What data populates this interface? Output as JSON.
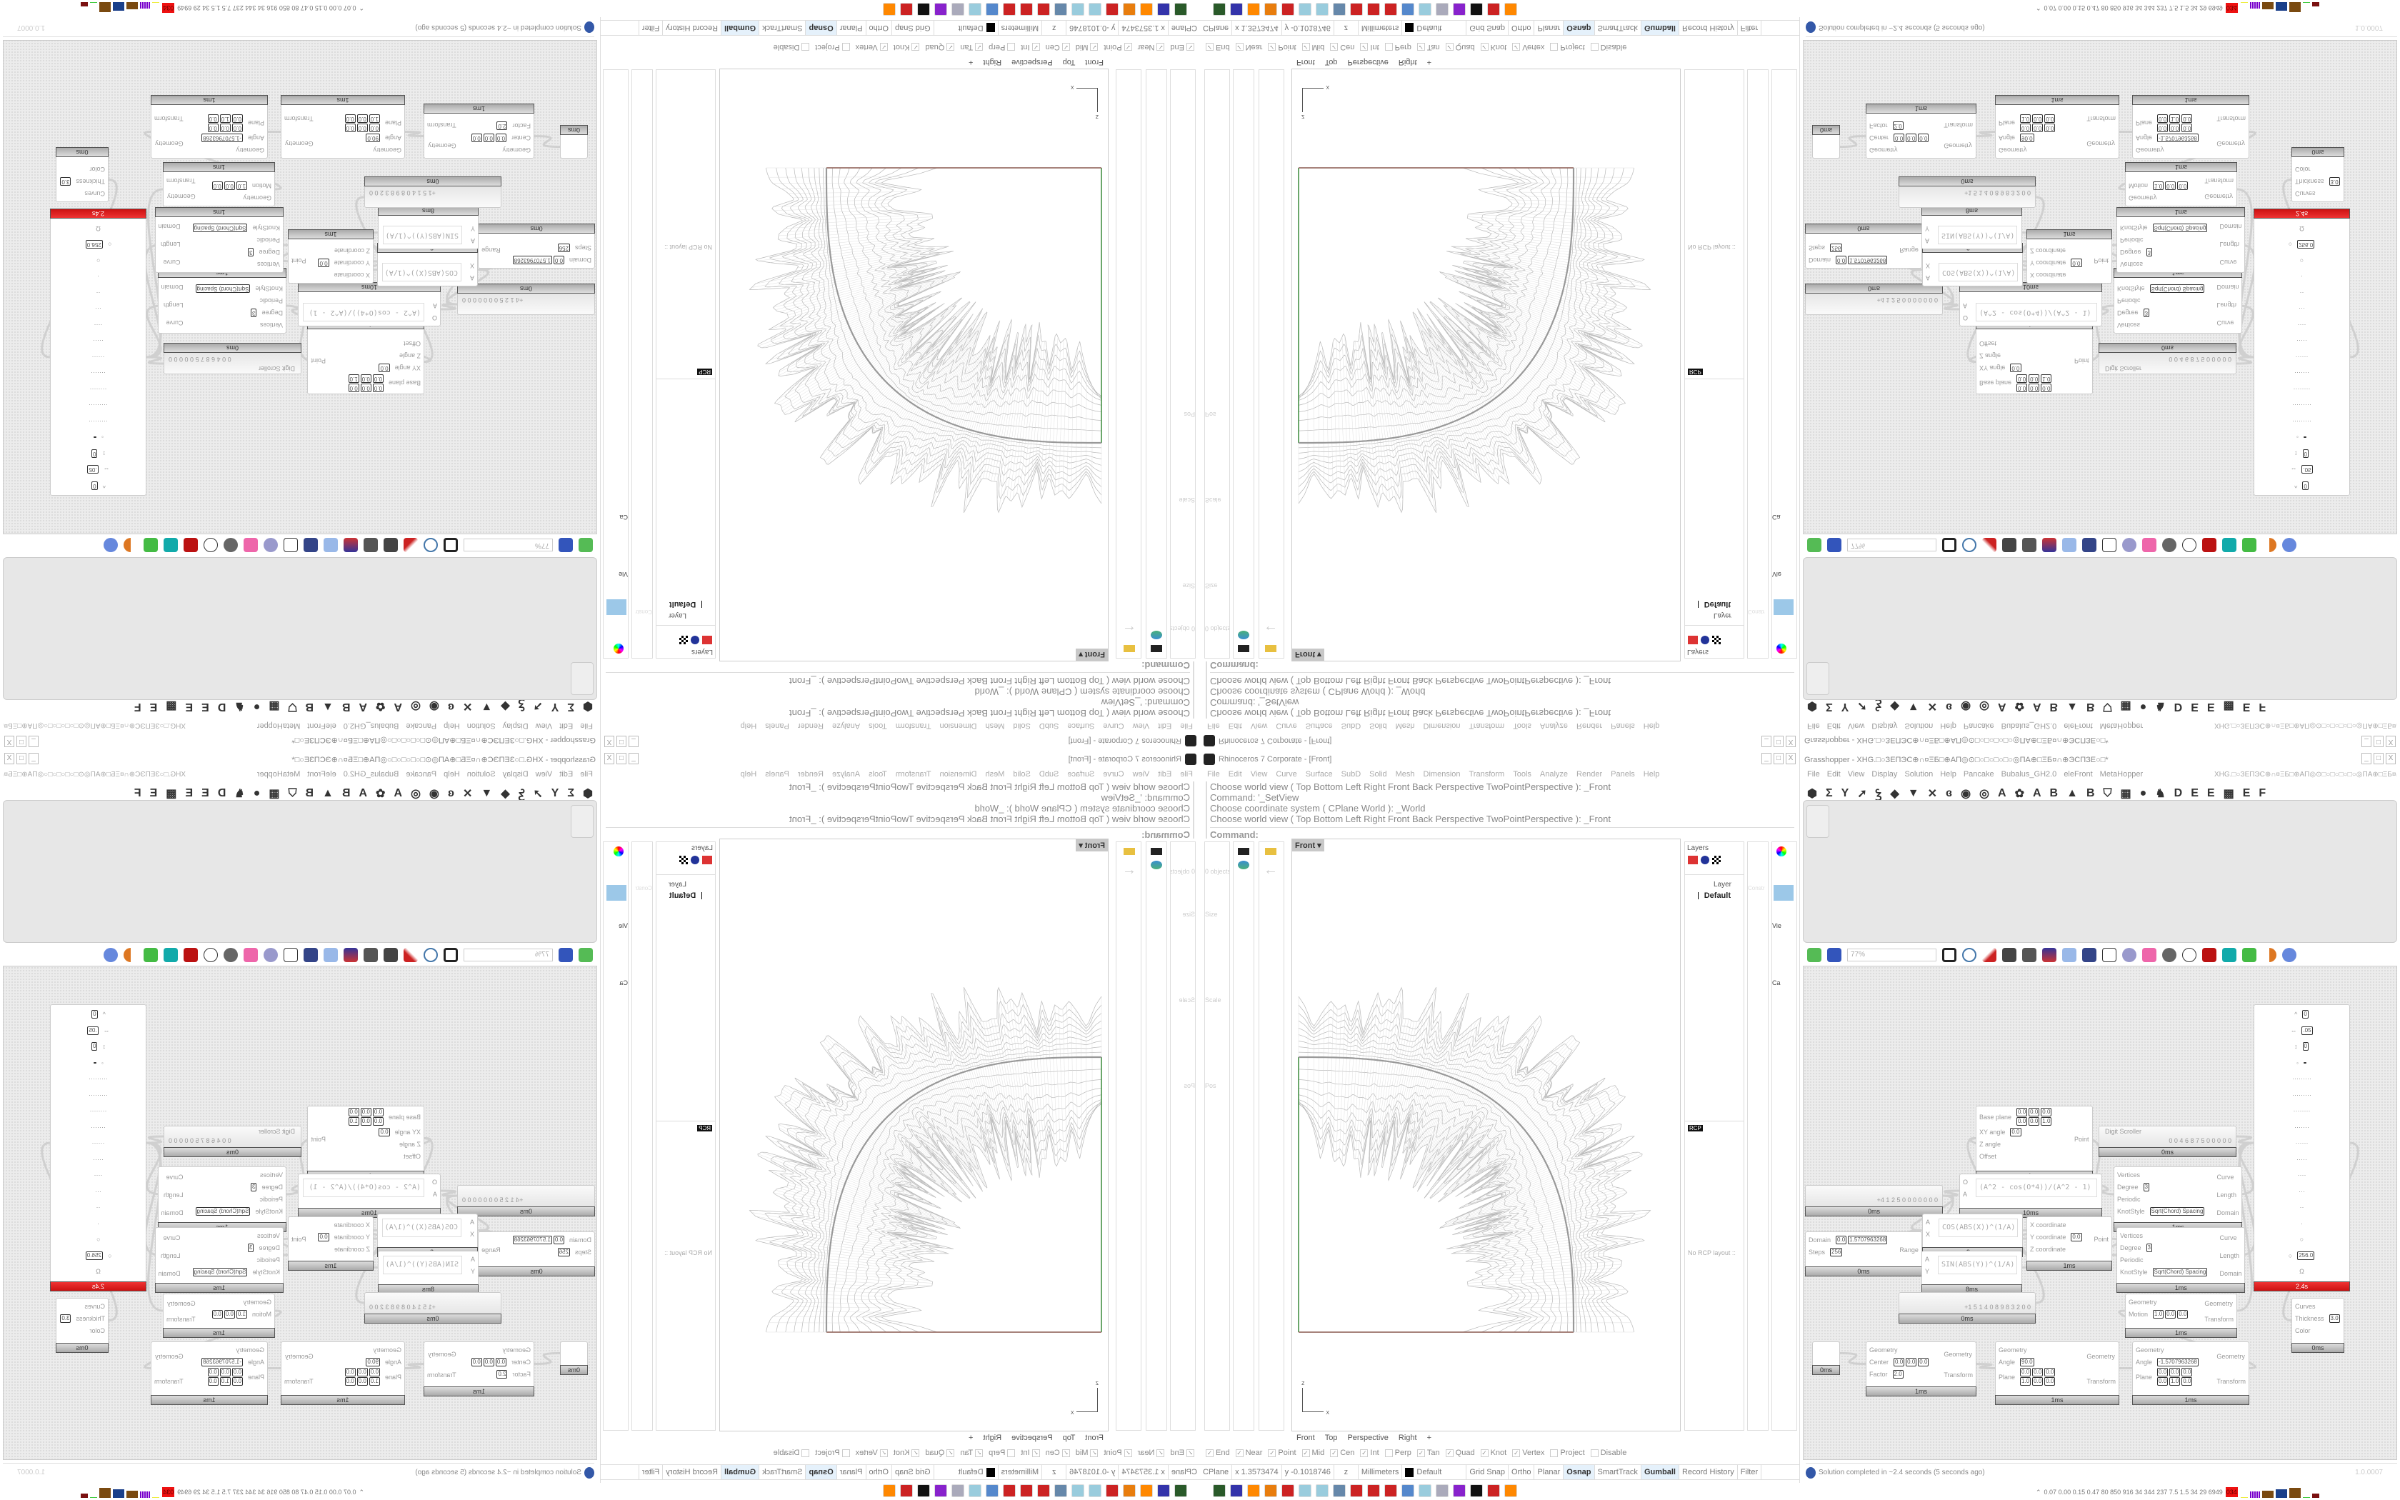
{
  "rhino": {
    "title": "Rhinoceros 7 Corporate - [Front]",
    "menu": [
      "File",
      "Edit",
      "View",
      "Curve",
      "Surface",
      "SubD",
      "Solid",
      "Mesh",
      "Dimension",
      "Transform",
      "Tools",
      "Analyze",
      "Render",
      "Panels",
      "Help"
    ],
    "command_history": [
      "Choose world view ( Top  Bottom  Left  Right  Front  Back  Perspective  TwoPointPerspective ): _Front",
      "Command: '_SetView",
      "Choose coordinate system ( CPlane  World ): _World",
      "Choose world view ( Top  Bottom  Left  Right  Front  Back  Perspective  TwoPointPerspective ): _Front"
    ],
    "command_prompt": "Command:",
    "viewport_label": "Front",
    "viewport_tabs": [
      "Front",
      "Top",
      "Perspective",
      "Right",
      "+"
    ],
    "properties": {
      "objects": "0 objects",
      "sections": [
        "Size",
        "Scale",
        "Pos"
      ],
      "axes": [
        "X:",
        "Y:",
        "Z:"
      ]
    },
    "layers": {
      "title": "Layers",
      "column": "Layer",
      "layer_name": "Default",
      "layer_color": "#000000",
      "rcp_tab": "RCP",
      "rcp_message": "No RCP layout ::"
    },
    "side_truncated": [
      "Constr",
      "Vie",
      "Ca"
    ],
    "osnaps": [
      {
        "label": "End",
        "checked": true
      },
      {
        "label": "Near",
        "checked": true
      },
      {
        "label": "Point",
        "checked": true
      },
      {
        "label": "Mid",
        "checked": true
      },
      {
        "label": "Cen",
        "checked": true
      },
      {
        "label": "Int",
        "checked": true
      },
      {
        "label": "Perp",
        "checked": false
      },
      {
        "label": "Tan",
        "checked": true
      },
      {
        "label": "Quad",
        "checked": true
      },
      {
        "label": "Knot",
        "checked": true
      },
      {
        "label": "Vertex",
        "checked": true
      },
      {
        "label": "Project",
        "checked": false
      },
      {
        "label": "Disable",
        "checked": false
      }
    ],
    "status": {
      "cplane": "CPlane",
      "x": "x 1.3573474",
      "y": "y -0.1018746",
      "z": "z",
      "units": "Millimeters",
      "layer": "Default",
      "toggles": [
        {
          "label": "Grid Snap",
          "active": false
        },
        {
          "label": "Ortho",
          "active": false
        },
        {
          "label": "Planar",
          "active": false
        },
        {
          "label": "Osnap",
          "active": true
        },
        {
          "label": "SmartTrack",
          "active": false
        },
        {
          "label": "Gumball",
          "active": true
        },
        {
          "label": "Record History",
          "active": false
        },
        {
          "label": "Filter",
          "active": false
        }
      ]
    },
    "viewport_colors": {
      "x_axis": "#8a5a50",
      "y_axis": "#3a8a3a",
      "curve": "#999999",
      "fringe": "#b8b8b8"
    }
  },
  "taskbar": {
    "icons": [
      "terminal-icon",
      "floppy-64-icon",
      "firefox-icon",
      "blender-icon",
      "red-app-icon",
      "notepad-icon",
      "notepad-icon",
      "calculator-icon",
      "red-app-icon",
      "red-app-icon",
      "red-app-icon",
      "control-panel-icon",
      "notepad-icon",
      "scroll-icon",
      "purple-app-icon",
      "rhino-icon",
      "red-app-icon",
      "firefox-icon"
    ],
    "perf_numbers": "0.07 0.00 0.15 0.47 80 850 916 34 344 237 7.5 1.5 34 29 6949",
    "perf_badge": "034"
  },
  "grasshopper": {
    "title": "Grasshopper - XHG.□○ЗЕПЭС⊕∩¤ΞБ□⊕ΑΠ◎⊙□○□○□○□○◎ΠΑ⊕□ΞБ¤∩⊕ЭСПЗЕ○□*",
    "menu": [
      "File",
      "Edit",
      "View",
      "Display",
      "Solution",
      "Help",
      "Pancake",
      "Bubalus_GH2.0",
      "eleFront",
      "MetaHopper"
    ],
    "doc_name": "XHG.□○ЗЕПЭС⊕∩¤ΞБ□⊕ΑΠ◎⊙□○□○□○□○◎ΠΑ⊕□ΞБ¤∩⊕ЭСПЗЕ○□",
    "tab_glyphs": [
      "⬢",
      "Σ",
      "Y",
      "➚",
      "Ꝣ",
      "◆",
      "▼",
      "✕",
      "ɞ",
      "◉",
      "◎",
      "A",
      "✿",
      "A",
      "B",
      "▲",
      "B",
      "⛉",
      "▦",
      "●",
      "♞",
      "D",
      "E",
      "E",
      "▩",
      "E",
      "F"
    ],
    "canvas_zoom": "77%",
    "status_message": "Solution completed in ~2.4 seconds (5 seconds ago)",
    "version": "1.0.0007",
    "components": [
      {
        "inputs": [
          {
            "l": "Base plane",
            "v": [
              "0.0",
              "0.0",
              "0.0",
              "0.0",
              "0.0",
              "1.0"
            ]
          },
          {
            "l": "XY angle",
            "v": [
              "0.0"
            ]
          },
          {
            "l": "Z angle"
          },
          {
            "l": "Offset"
          }
        ],
        "outputs": [
          "Point"
        ],
        "time": "1ms"
      },
      {
        "slider": "Digit Scroller",
        "value": "0  0 4 6 8 7 5 0 0 0 0 0",
        "time": "0ms"
      },
      {
        "slider": "",
        "value": "+4  1 2 5 0 0 0 0 0 0 0",
        "time": "0ms"
      },
      {
        "expr": "(A^2 - cos(O*4))/(A^2 - 1)",
        "inputs": [
          {
            "l": "O"
          },
          {
            "l": "A"
          }
        ],
        "outputs": [],
        "time": "10ms"
      },
      {
        "inputs": [
          {
            "l": "Vertices"
          },
          {
            "l": "Degree",
            "v": [
              "3"
            ]
          },
          {
            "l": "Periodic"
          },
          {
            "l": "KnotStyle",
            "v": [
              "Sqrt(Chord) Spacing"
            ]
          }
        ],
        "outputs": [
          "Curve",
          "Length",
          "Domain"
        ],
        "time": "1ms"
      },
      {
        "inputs": [
          {
            "l": "Vertices"
          },
          {
            "l": "Degree",
            "v": [
              "3"
            ]
          },
          {
            "l": "Periodic"
          },
          {
            "l": "KnotStyle",
            "v": [
              "Sqrt(Chord) Spacing"
            ]
          }
        ],
        "outputs": [
          "Curve",
          "Length",
          "Domain"
        ],
        "time": "1ms"
      },
      {
        "inputs": [
          {
            "l": "Domain",
            "v": [
              "0.0",
              "1.5707963268"
            ]
          },
          {
            "l": "Steps",
            "v": [
              "256"
            ]
          }
        ],
        "outputs": [
          "Range"
        ],
        "time": "0ms"
      },
      {
        "expr": "COS(ABS(X))^(1/A)",
        "inputs": [
          {
            "l": "A"
          },
          {
            "l": "X"
          }
        ],
        "outputs": [],
        "time": "9ms"
      },
      {
        "expr": "SIN(ABS(Y))^(1/A)",
        "inputs": [
          {
            "l": "A"
          },
          {
            "l": "Y"
          }
        ],
        "outputs": [],
        "time": "8ms"
      },
      {
        "inputs": [
          {
            "l": "X coordinate"
          },
          {
            "l": "Y coordinate",
            "v": [
              "0.0"
            ]
          },
          {
            "l": "Z coordinate"
          }
        ],
        "outputs": [
          "Point"
        ],
        "time": "1ms"
      },
      {
        "slider": "",
        "value": "+1  5 1 4 0 8 9 8 3 2 0 0",
        "time": "0ms"
      },
      {
        "inputs": [
          {
            "l": "Geometry"
          },
          {
            "l": "Motion",
            "v": [
              "1.0",
              "0.0",
              "0.0"
            ]
          }
        ],
        "outputs": [
          "Geometry",
          "Transform"
        ],
        "time": "1ms"
      },
      {
        "inputs": [
          {
            "l": "Curves"
          },
          {
            "l": "Thickness",
            "v": [
              "3.0"
            ]
          },
          {
            "l": "Color"
          }
        ],
        "outputs": [],
        "time": "0ms"
      },
      {
        "inputs": [],
        "outputs": [],
        "time": "0ms"
      },
      {
        "inputs": [
          {
            "l": "Geometry"
          },
          {
            "l": "Center",
            "v": [
              "0.0",
              "0.0",
              "0.0"
            ]
          },
          {
            "l": "Factor",
            "v": [
              "2.0"
            ]
          }
        ],
        "outputs": [
          "Geometry",
          "Transform"
        ],
        "time": "1ms"
      },
      {
        "inputs": [
          {
            "l": "Geometry"
          },
          {
            "l": "Angle",
            "v": [
              "90.0"
            ]
          },
          {
            "l": "Plane",
            "v": [
              "0.0",
              "0.0",
              "0.0",
              "1.0",
              "0.0",
              "0.0"
            ]
          }
        ],
        "outputs": [
          "Geometry",
          "Transform"
        ],
        "time": "1ms"
      },
      {
        "inputs": [
          {
            "l": "Geometry"
          },
          {
            "l": "Angle",
            "v": [
              "-1.5707963268"
            ]
          },
          {
            "l": "Plane",
            "v": [
              "0.0",
              "0.0",
              "0.0",
              "0.0",
              "1.0",
              "0.0"
            ]
          }
        ],
        "outputs": [
          "Geometry",
          "Transform"
        ],
        "time": "1ms"
      },
      {
        "inputs": [
          {
            "l": "^",
            "v": [
              "0"
            ]
          },
          {
            "l": "⇔",
            "v": [
              ".05"
            ]
          },
          {
            "l": "↕",
            "v": [
              "0"
            ]
          },
          {
            "l": "◦",
            "v": [
              ""
            ]
          },
          {
            "l": "·········"
          },
          {
            "l": "·········"
          },
          {
            "l": "········"
          },
          {
            "l": "·······"
          },
          {
            "l": "······"
          },
          {
            "l": "·····"
          },
          {
            "l": "····"
          },
          {
            "l": "···"
          },
          {
            "l": "··"
          },
          {
            "l": "·"
          },
          {
            "l": "○"
          },
          {
            "l": "○",
            "v": [
              "256.0"
            ]
          },
          {
            "l": "Ω"
          }
        ],
        "outputs": [],
        "time": "2.4s",
        "alert": true
      }
    ]
  }
}
